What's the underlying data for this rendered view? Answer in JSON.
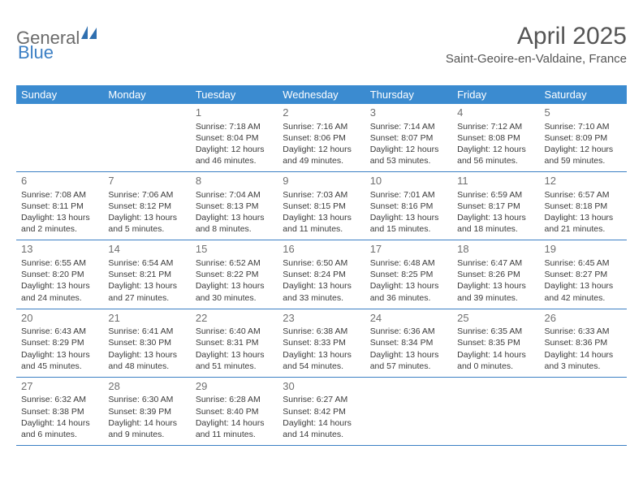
{
  "logo": {
    "part1": "General",
    "part2": "Blue"
  },
  "title": "April 2025",
  "location": "Saint-Geoire-en-Valdaine, France",
  "header_bg": "#3b8bd0",
  "header_fg": "#ffffff",
  "rule_color": "#3b7fc4",
  "day_headers": [
    "Sunday",
    "Monday",
    "Tuesday",
    "Wednesday",
    "Thursday",
    "Friday",
    "Saturday"
  ],
  "weeks": [
    [
      null,
      null,
      {
        "n": "1",
        "sr": "Sunrise: 7:18 AM",
        "ss": "Sunset: 8:04 PM",
        "dl": "Daylight: 12 hours and 46 minutes."
      },
      {
        "n": "2",
        "sr": "Sunrise: 7:16 AM",
        "ss": "Sunset: 8:06 PM",
        "dl": "Daylight: 12 hours and 49 minutes."
      },
      {
        "n": "3",
        "sr": "Sunrise: 7:14 AM",
        "ss": "Sunset: 8:07 PM",
        "dl": "Daylight: 12 hours and 53 minutes."
      },
      {
        "n": "4",
        "sr": "Sunrise: 7:12 AM",
        "ss": "Sunset: 8:08 PM",
        "dl": "Daylight: 12 hours and 56 minutes."
      },
      {
        "n": "5",
        "sr": "Sunrise: 7:10 AM",
        "ss": "Sunset: 8:09 PM",
        "dl": "Daylight: 12 hours and 59 minutes."
      }
    ],
    [
      {
        "n": "6",
        "sr": "Sunrise: 7:08 AM",
        "ss": "Sunset: 8:11 PM",
        "dl": "Daylight: 13 hours and 2 minutes."
      },
      {
        "n": "7",
        "sr": "Sunrise: 7:06 AM",
        "ss": "Sunset: 8:12 PM",
        "dl": "Daylight: 13 hours and 5 minutes."
      },
      {
        "n": "8",
        "sr": "Sunrise: 7:04 AM",
        "ss": "Sunset: 8:13 PM",
        "dl": "Daylight: 13 hours and 8 minutes."
      },
      {
        "n": "9",
        "sr": "Sunrise: 7:03 AM",
        "ss": "Sunset: 8:15 PM",
        "dl": "Daylight: 13 hours and 11 minutes."
      },
      {
        "n": "10",
        "sr": "Sunrise: 7:01 AM",
        "ss": "Sunset: 8:16 PM",
        "dl": "Daylight: 13 hours and 15 minutes."
      },
      {
        "n": "11",
        "sr": "Sunrise: 6:59 AM",
        "ss": "Sunset: 8:17 PM",
        "dl": "Daylight: 13 hours and 18 minutes."
      },
      {
        "n": "12",
        "sr": "Sunrise: 6:57 AM",
        "ss": "Sunset: 8:18 PM",
        "dl": "Daylight: 13 hours and 21 minutes."
      }
    ],
    [
      {
        "n": "13",
        "sr": "Sunrise: 6:55 AM",
        "ss": "Sunset: 8:20 PM",
        "dl": "Daylight: 13 hours and 24 minutes."
      },
      {
        "n": "14",
        "sr": "Sunrise: 6:54 AM",
        "ss": "Sunset: 8:21 PM",
        "dl": "Daylight: 13 hours and 27 minutes."
      },
      {
        "n": "15",
        "sr": "Sunrise: 6:52 AM",
        "ss": "Sunset: 8:22 PM",
        "dl": "Daylight: 13 hours and 30 minutes."
      },
      {
        "n": "16",
        "sr": "Sunrise: 6:50 AM",
        "ss": "Sunset: 8:24 PM",
        "dl": "Daylight: 13 hours and 33 minutes."
      },
      {
        "n": "17",
        "sr": "Sunrise: 6:48 AM",
        "ss": "Sunset: 8:25 PM",
        "dl": "Daylight: 13 hours and 36 minutes."
      },
      {
        "n": "18",
        "sr": "Sunrise: 6:47 AM",
        "ss": "Sunset: 8:26 PM",
        "dl": "Daylight: 13 hours and 39 minutes."
      },
      {
        "n": "19",
        "sr": "Sunrise: 6:45 AM",
        "ss": "Sunset: 8:27 PM",
        "dl": "Daylight: 13 hours and 42 minutes."
      }
    ],
    [
      {
        "n": "20",
        "sr": "Sunrise: 6:43 AM",
        "ss": "Sunset: 8:29 PM",
        "dl": "Daylight: 13 hours and 45 minutes."
      },
      {
        "n": "21",
        "sr": "Sunrise: 6:41 AM",
        "ss": "Sunset: 8:30 PM",
        "dl": "Daylight: 13 hours and 48 minutes."
      },
      {
        "n": "22",
        "sr": "Sunrise: 6:40 AM",
        "ss": "Sunset: 8:31 PM",
        "dl": "Daylight: 13 hours and 51 minutes."
      },
      {
        "n": "23",
        "sr": "Sunrise: 6:38 AM",
        "ss": "Sunset: 8:33 PM",
        "dl": "Daylight: 13 hours and 54 minutes."
      },
      {
        "n": "24",
        "sr": "Sunrise: 6:36 AM",
        "ss": "Sunset: 8:34 PM",
        "dl": "Daylight: 13 hours and 57 minutes."
      },
      {
        "n": "25",
        "sr": "Sunrise: 6:35 AM",
        "ss": "Sunset: 8:35 PM",
        "dl": "Daylight: 14 hours and 0 minutes."
      },
      {
        "n": "26",
        "sr": "Sunrise: 6:33 AM",
        "ss": "Sunset: 8:36 PM",
        "dl": "Daylight: 14 hours and 3 minutes."
      }
    ],
    [
      {
        "n": "27",
        "sr": "Sunrise: 6:32 AM",
        "ss": "Sunset: 8:38 PM",
        "dl": "Daylight: 14 hours and 6 minutes."
      },
      {
        "n": "28",
        "sr": "Sunrise: 6:30 AM",
        "ss": "Sunset: 8:39 PM",
        "dl": "Daylight: 14 hours and 9 minutes."
      },
      {
        "n": "29",
        "sr": "Sunrise: 6:28 AM",
        "ss": "Sunset: 8:40 PM",
        "dl": "Daylight: 14 hours and 11 minutes."
      },
      {
        "n": "30",
        "sr": "Sunrise: 6:27 AM",
        "ss": "Sunset: 8:42 PM",
        "dl": "Daylight: 14 hours and 14 minutes."
      },
      null,
      null,
      null
    ]
  ]
}
